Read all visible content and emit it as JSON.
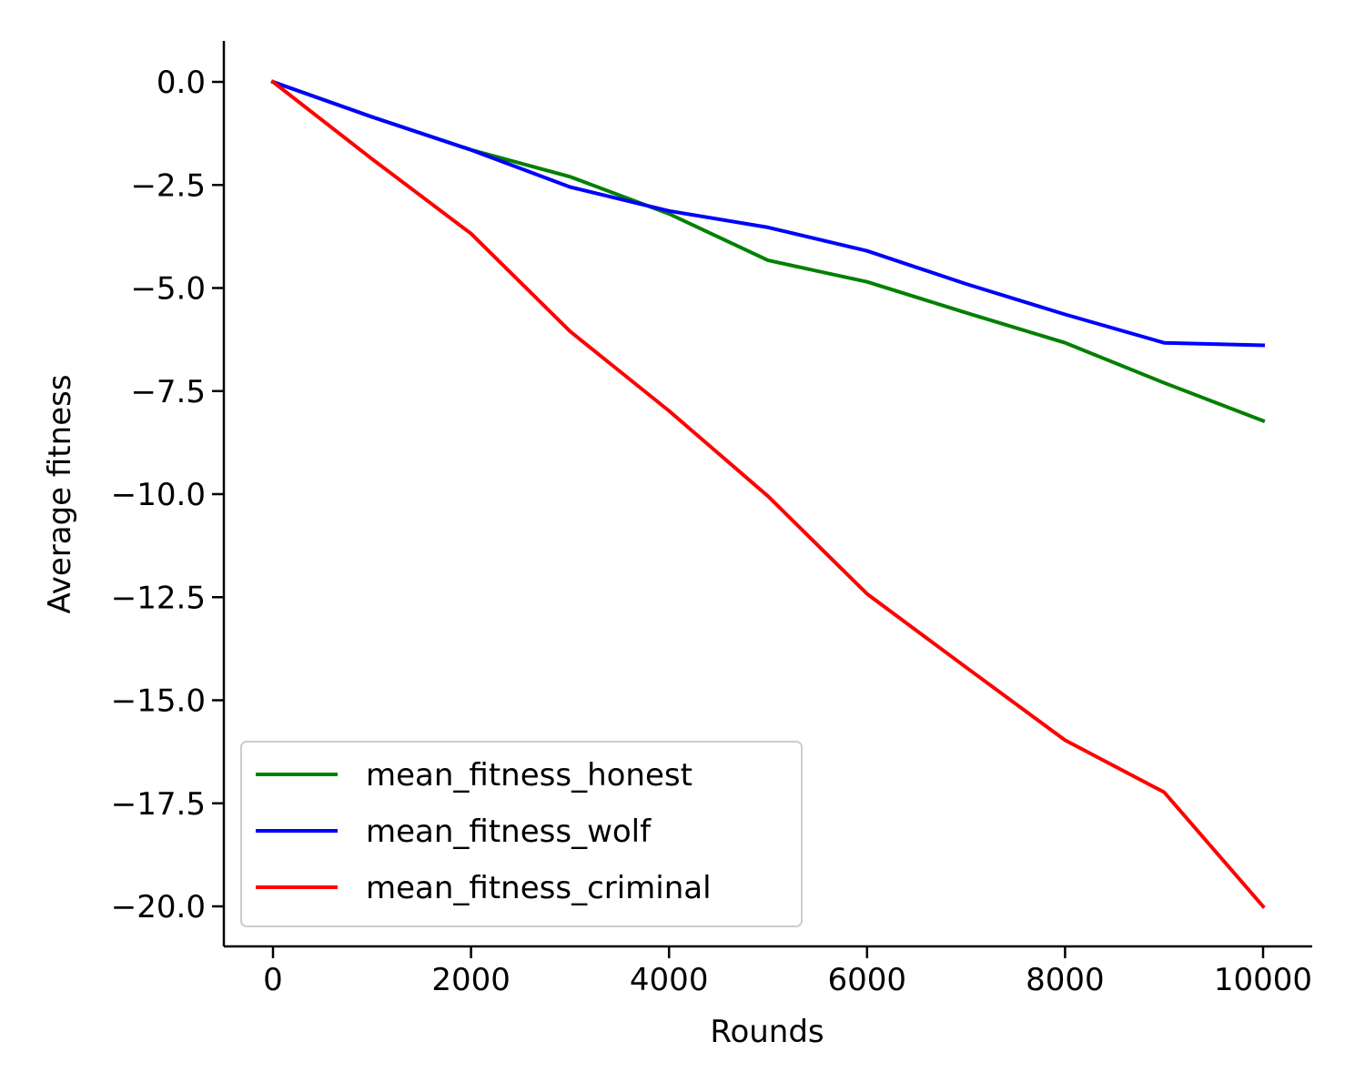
{
  "chart_data": {
    "type": "line",
    "title": "",
    "xlabel": "Rounds",
    "ylabel": "Average fitness",
    "xlim": [
      -500,
      10500
    ],
    "ylim": [
      -21,
      1
    ],
    "xticks": [
      0,
      2000,
      4000,
      6000,
      8000,
      10000
    ],
    "xtick_labels": [
      "0",
      "2000",
      "4000",
      "6000",
      "8000",
      "10000"
    ],
    "yticks": [
      0,
      -2.5,
      -5,
      -7.5,
      -10,
      -12.5,
      -15,
      -17.5,
      -20
    ],
    "ytick_labels": [
      "0.0",
      "−2.5",
      "−5.0",
      "−7.5",
      "−10.0",
      "−12.5",
      "−15.0",
      "−17.5",
      "−20.0"
    ],
    "grid": false,
    "legend_position": "lower-left",
    "x": [
      0,
      1000,
      2000,
      3000,
      4000,
      5000,
      6000,
      7000,
      8000,
      9000,
      10000
    ],
    "series": [
      {
        "name": "mean_fitness_honest",
        "color": "#008000",
        "values": [
          0,
          -0.85,
          -1.65,
          -2.3,
          -3.2,
          -4.33,
          -4.85,
          -5.6,
          -6.33,
          -7.3,
          -8.22
        ]
      },
      {
        "name": "mean_fitness_wolf",
        "color": "#0000ff",
        "values": [
          0,
          -0.85,
          -1.65,
          -2.55,
          -3.13,
          -3.53,
          -4.1,
          -4.9,
          -5.64,
          -6.33,
          -6.39
        ]
      },
      {
        "name": "mean_fitness_criminal",
        "color": "#ff0000",
        "values": [
          0,
          -1.87,
          -3.68,
          -6.05,
          -7.98,
          -10.05,
          -12.42,
          -14.2,
          -15.97,
          -17.23,
          -20
        ]
      }
    ]
  }
}
